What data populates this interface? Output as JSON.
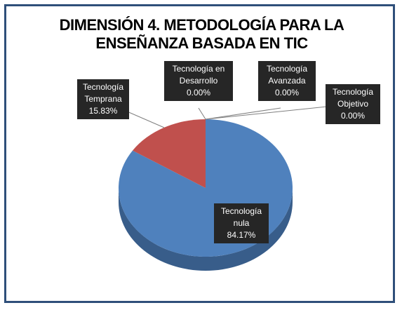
{
  "title_line1": "DIMENSIÓN 4. METODOLOGÍA PARA LA",
  "title_line2": "ENSEÑANZA BASADA EN TIC",
  "colors": {
    "nula": "#4f81bd",
    "nula_dark": "#385d8a",
    "temprana": "#c0504d",
    "temprana_dark": "#8c3836",
    "frame": "#2f4f7a"
  },
  "labels": {
    "temprana": {
      "name_line1": "Tecnología",
      "name_line2": "Temprana",
      "value": "15.83%"
    },
    "desarrollo": {
      "name_line1": "Tecnología  en",
      "name_line2": "Desarrollo",
      "value": "0.00%"
    },
    "avanzada": {
      "name_line1": "Tecnología",
      "name_line2": "Avanzada",
      "value": "0.00%"
    },
    "objetivo": {
      "name_line1": "Tecnología",
      "name_line2": "Objetivo",
      "value": "0.00%"
    },
    "nula": {
      "name_line1": "Tecnología",
      "name_line2": "nula",
      "value": "84.17%"
    }
  },
  "chart_data": {
    "type": "pie",
    "title": "DIMENSIÓN 4. METODOLOGÍA PARA LA ENSEÑANZA BASADA EN TIC",
    "categories": [
      "Tecnología Objetivo",
      "Tecnología Avanzada",
      "Tecnología en Desarrollo",
      "Tecnología nula",
      "Tecnología Temprana"
    ],
    "values": [
      0.0,
      0.0,
      0.0,
      84.17,
      15.83
    ],
    "unit": "%"
  }
}
